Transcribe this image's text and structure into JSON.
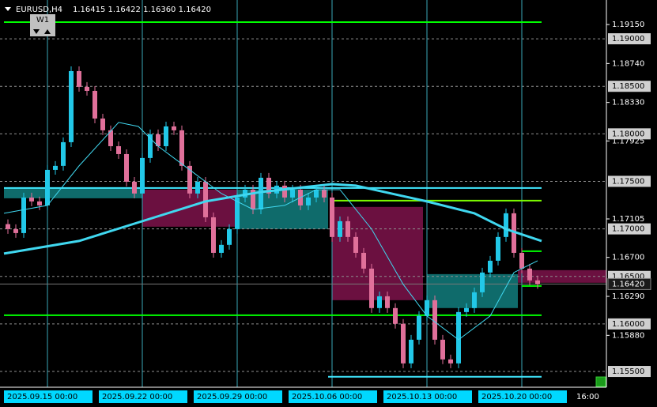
{
  "chart_data": {
    "type": "candlestick",
    "title": "EURUSD,H4",
    "quote": "1.16415 1.16422 1.16360 1.16420",
    "timeframe_button": "W1",
    "ylim": [
      1.15334,
      1.19408
    ],
    "yticks": [
      {
        "value": 1.1915,
        "label": "1.19150"
      },
      {
        "value": 1.1874,
        "label": "1.18740"
      },
      {
        "value": 1.1833,
        "label": "1.18330"
      },
      {
        "value": 1.17925,
        "label": "1.17925"
      },
      {
        "value": 1.17105,
        "label": "1.17105"
      },
      {
        "value": 1.167,
        "label": "1.16700"
      },
      {
        "value": 1.1629,
        "label": "1.16290"
      },
      {
        "value": 1.1588,
        "label": "1.15880"
      }
    ],
    "levels": [
      {
        "value": 1.19,
        "label": "1.19000"
      },
      {
        "value": 1.185,
        "label": "1.18500"
      },
      {
        "value": 1.18,
        "label": "1.18000"
      },
      {
        "value": 1.175,
        "label": "1.17500"
      },
      {
        "value": 1.17,
        "label": "1.17000"
      },
      {
        "value": 1.165,
        "label": "1.16500"
      },
      {
        "value": 1.16,
        "label": "1.16000"
      },
      {
        "value": 1.155,
        "label": "1.15500"
      }
    ],
    "current_price": {
      "value": 1.1642,
      "label": "1.16420"
    },
    "bull_color": "#22c8e8",
    "bear_color": "#e0709a",
    "candles": {
      "open": [
        1.1705,
        1.16998,
        1.16956,
        1.1733,
        1.17289,
        1.17247,
        1.17621,
        1.17663,
        1.17912,
        1.1866,
        1.18494,
        1.18452,
        1.18161,
        1.18037,
        1.1787,
        1.17787,
        1.17496,
        1.17372,
        1.17746,
        1.17995,
        1.1787,
        1.18078,
        1.18037,
        1.17663,
        1.17372,
        1.17496,
        1.17122,
        1.16748,
        1.16832,
        1.16998,
        1.1733,
        1.17413,
        1.17205,
        1.17538,
        1.17372,
        1.17455,
        1.1733,
        1.17413,
        1.17247,
        1.1733,
        1.17413,
        1.1733,
        1.16915,
        1.17081,
        1.16915,
        1.16748,
        1.16582,
        1.16167,
        1.16291,
        1.16167,
        1.16001,
        1.15585,
        1.15834,
        1.16084,
        1.1625,
        1.15834,
        1.15627,
        1.15585,
        1.16125,
        1.16167,
        1.16333,
        1.16541,
        1.16665,
        1.16915,
        1.17164,
        1.16748,
        1.16582,
        1.16458
      ],
      "high": [
        1.171,
        1.17048,
        1.1738,
        1.1738,
        1.17339,
        1.17671,
        1.17713,
        1.17962,
        1.1871,
        1.1871,
        1.18544,
        1.18502,
        1.18211,
        1.18087,
        1.1792,
        1.17837,
        1.17546,
        1.17796,
        1.18045,
        1.18045,
        1.18128,
        1.18128,
        1.18087,
        1.17713,
        1.17546,
        1.17546,
        1.17172,
        1.16882,
        1.17048,
        1.1738,
        1.17463,
        1.17463,
        1.17588,
        1.17588,
        1.17505,
        1.17505,
        1.17463,
        1.17463,
        1.1738,
        1.17463,
        1.17463,
        1.1738,
        1.17131,
        1.17131,
        1.16965,
        1.16798,
        1.16632,
        1.16341,
        1.16341,
        1.16217,
        1.16051,
        1.15884,
        1.16134,
        1.163,
        1.163,
        1.15884,
        1.15677,
        1.16175,
        1.16217,
        1.16383,
        1.16591,
        1.16715,
        1.16965,
        1.17214,
        1.17214,
        1.16798,
        1.16632,
        1.16508
      ],
      "low": [
        1.16948,
        1.16906,
        1.16906,
        1.17239,
        1.17197,
        1.17197,
        1.17571,
        1.17613,
        1.17862,
        1.18444,
        1.18402,
        1.18111,
        1.17987,
        1.1782,
        1.17737,
        1.17446,
        1.17322,
        1.17322,
        1.17696,
        1.1782,
        1.1782,
        1.17987,
        1.17613,
        1.17322,
        1.17322,
        1.17072,
        1.16698,
        1.16698,
        1.16782,
        1.16948,
        1.1728,
        1.17155,
        1.17155,
        1.17322,
        1.17322,
        1.1728,
        1.1728,
        1.17197,
        1.17197,
        1.1728,
        1.1728,
        1.16865,
        1.16865,
        1.16865,
        1.16698,
        1.16532,
        1.16117,
        1.16117,
        1.16117,
        1.15951,
        1.15535,
        1.15535,
        1.15784,
        1.16034,
        1.15784,
        1.15577,
        1.15535,
        1.15535,
        1.16075,
        1.16117,
        1.16283,
        1.16491,
        1.16615,
        1.16865,
        1.16698,
        1.16532,
        1.16408,
        1.1637
      ],
      "close": [
        1.16998,
        1.16956,
        1.1733,
        1.17289,
        1.17247,
        1.17621,
        1.17663,
        1.17912,
        1.1866,
        1.18494,
        1.18452,
        1.18161,
        1.18037,
        1.1787,
        1.17787,
        1.17496,
        1.17372,
        1.17746,
        1.17995,
        1.1787,
        1.18078,
        1.18037,
        1.17663,
        1.17372,
        1.17496,
        1.17122,
        1.16748,
        1.16832,
        1.16998,
        1.1733,
        1.17413,
        1.17205,
        1.17538,
        1.17372,
        1.17455,
        1.1733,
        1.17413,
        1.17247,
        1.1733,
        1.17413,
        1.1733,
        1.16915,
        1.17081,
        1.16915,
        1.16748,
        1.16582,
        1.16167,
        1.16291,
        1.16167,
        1.16001,
        1.15585,
        1.15834,
        1.16084,
        1.1625,
        1.15834,
        1.15627,
        1.15585,
        1.16125,
        1.16167,
        1.16333,
        1.16541,
        1.16665,
        1.16915,
        1.17164,
        1.16748,
        1.16582,
        1.16458,
        1.1642
      ]
    },
    "moving_averages": [
      {
        "color": "#40d8f0",
        "width": 3,
        "x": [
          0,
          9.5,
          17.5,
          25.5,
          32.5,
          41.5,
          44.5,
          53.5,
          59.5,
          63.5,
          68
        ],
        "values": [
          1.1674,
          1.16873,
          1.17081,
          1.17289,
          1.17388,
          1.17471,
          1.17455,
          1.17289,
          1.17164,
          1.16998,
          1.16873
        ]
      },
      {
        "color": "#40d8f0",
        "width": 1,
        "x": [
          0,
          5.5,
          9.5,
          14.5,
          17,
          19.5,
          23.5,
          27.5,
          31.5,
          35.5,
          39.5,
          42.5,
          46.5,
          50.5,
          53.5,
          57.5,
          61.5,
          64.5,
          67.5
        ],
        "values": [
          1.17164,
          1.17247,
          1.17663,
          1.1812,
          1.18078,
          1.1787,
          1.17621,
          1.17372,
          1.17205,
          1.17247,
          1.17413,
          1.17413,
          1.16998,
          1.16416,
          1.16084,
          1.15834,
          1.16084,
          1.16541,
          1.16665
        ]
      }
    ],
    "zones": [
      {
        "top": 1.17438,
        "bottom": 1.17322,
        "from": 0,
        "to": 17.5,
        "color": "#0f6b6b"
      },
      {
        "top": 1.17413,
        "bottom": 1.17023,
        "from": 17.5,
        "to": 29.5,
        "color": "#6b1040"
      },
      {
        "top": 1.17413,
        "bottom": 1.16998,
        "from": 29.5,
        "to": 41,
        "color": "#0f6b6b"
      },
      {
        "top": 1.17231,
        "bottom": 1.1625,
        "from": 41.5,
        "to": 53,
        "color": "#6b1040"
      },
      {
        "top": 1.16524,
        "bottom": 1.16167,
        "from": 53.5,
        "to": 65,
        "color": "#0f6b6b"
      },
      {
        "top": 1.16566,
        "bottom": 1.16433,
        "from": 65,
        "to": 76.5,
        "color": "#6b1040"
      }
    ],
    "hlines": [
      {
        "value": 1.19175,
        "from": 0,
        "to": 68,
        "color": "#00ff00"
      },
      {
        "value": 1.16092,
        "from": 0,
        "to": 68,
        "color": "#00ff00"
      },
      {
        "value": 1.1743,
        "from": 0,
        "to": 68,
        "color": "#40e8ff"
      },
      {
        "value": 1.17297,
        "from": 41.5,
        "to": 68,
        "color": "#7cfc00"
      },
      {
        "value": 1.15444,
        "from": 41,
        "to": 68,
        "color": "#40e8ff"
      },
      {
        "value": 1.16765,
        "from": 65.5,
        "to": 68,
        "color": "#00ff00"
      },
      {
        "value": 1.16399,
        "from": 65.5,
        "to": 68,
        "color": "#00ff00"
      }
    ],
    "separators": [
      5.5,
      17.5,
      29.5,
      41.5,
      53.5,
      65.5
    ],
    "xlabels": [
      {
        "value": 0,
        "label": "2025.09.15 00:00"
      },
      {
        "value": 12,
        "label": "2025.09.22 00:00"
      },
      {
        "value": 24,
        "label": "2025.09.29 00:00"
      },
      {
        "value": 36,
        "label": "2025.10.06 00:00"
      },
      {
        "value": 48,
        "label": "2025.10.13 00:00"
      },
      {
        "value": 60,
        "label": "2025.10.20 00:00"
      },
      {
        "value": 72,
        "label": "16:00"
      }
    ]
  }
}
